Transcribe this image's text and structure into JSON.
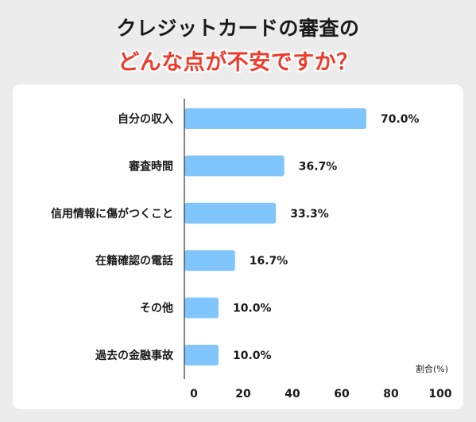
{
  "header": {
    "line1": "クレジットカードの審査の",
    "line2": "どんな点が不安ですか？"
  },
  "chart_data": {
    "type": "bar",
    "orientation": "horizontal",
    "categories": [
      "自分の収入",
      "審査時間",
      "信用情報に傷がつくこと",
      "在籍確認の電話",
      "その他",
      "過去の金融事故"
    ],
    "values": [
      70.0,
      36.7,
      33.3,
      16.7,
      10.0,
      10.0
    ],
    "value_labels": [
      "70.0%",
      "36.7%",
      "33.3%",
      "16.7%",
      "10.0%",
      "10.0%"
    ],
    "xlim": [
      0,
      100
    ],
    "xticks": [
      "0",
      "20",
      "40",
      "60",
      "80",
      "100"
    ],
    "xlabel": "割合(%)",
    "bar_color": "#80c5fc",
    "grid": false
  }
}
